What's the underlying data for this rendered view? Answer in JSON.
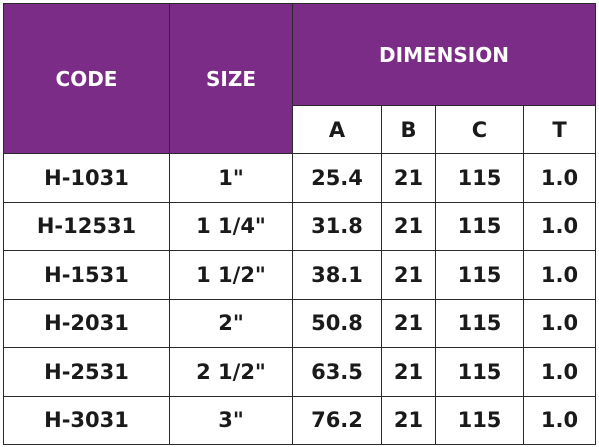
{
  "headers": {
    "code": "CODE",
    "size": "SIZE",
    "dimension": "DIMENSION",
    "sub": [
      "A",
      "B",
      "C",
      "T"
    ]
  },
  "rows": [
    {
      "code": "H-1031",
      "size": "1\"",
      "a": "25.4",
      "b": "21",
      "c": "115",
      "t": "1.0"
    },
    {
      "code": "H-12531",
      "size": "1 1/4\"",
      "a": "31.8",
      "b": "21",
      "c": "115",
      "t": "1.0"
    },
    {
      "code": "H-1531",
      "size": "1 1/2\"",
      "a": "38.1",
      "b": "21",
      "c": "115",
      "t": "1.0"
    },
    {
      "code": "H-2031",
      "size": "2\"",
      "a": "50.8",
      "b": "21",
      "c": "115",
      "t": "1.0"
    },
    {
      "code": "H-2531",
      "size": "2 1/2\"",
      "a": "63.5",
      "b": "21",
      "c": "115",
      "t": "1.0"
    },
    {
      "code": "H-3031",
      "size": "3\"",
      "a": "76.2",
      "b": "21",
      "c": "115",
      "t": "1.0"
    }
  ],
  "colors": {
    "header_bg": "#7b2c86",
    "header_text": "#ffffff",
    "border": "#2a2a2a",
    "body_text": "#1a1a1a"
  }
}
